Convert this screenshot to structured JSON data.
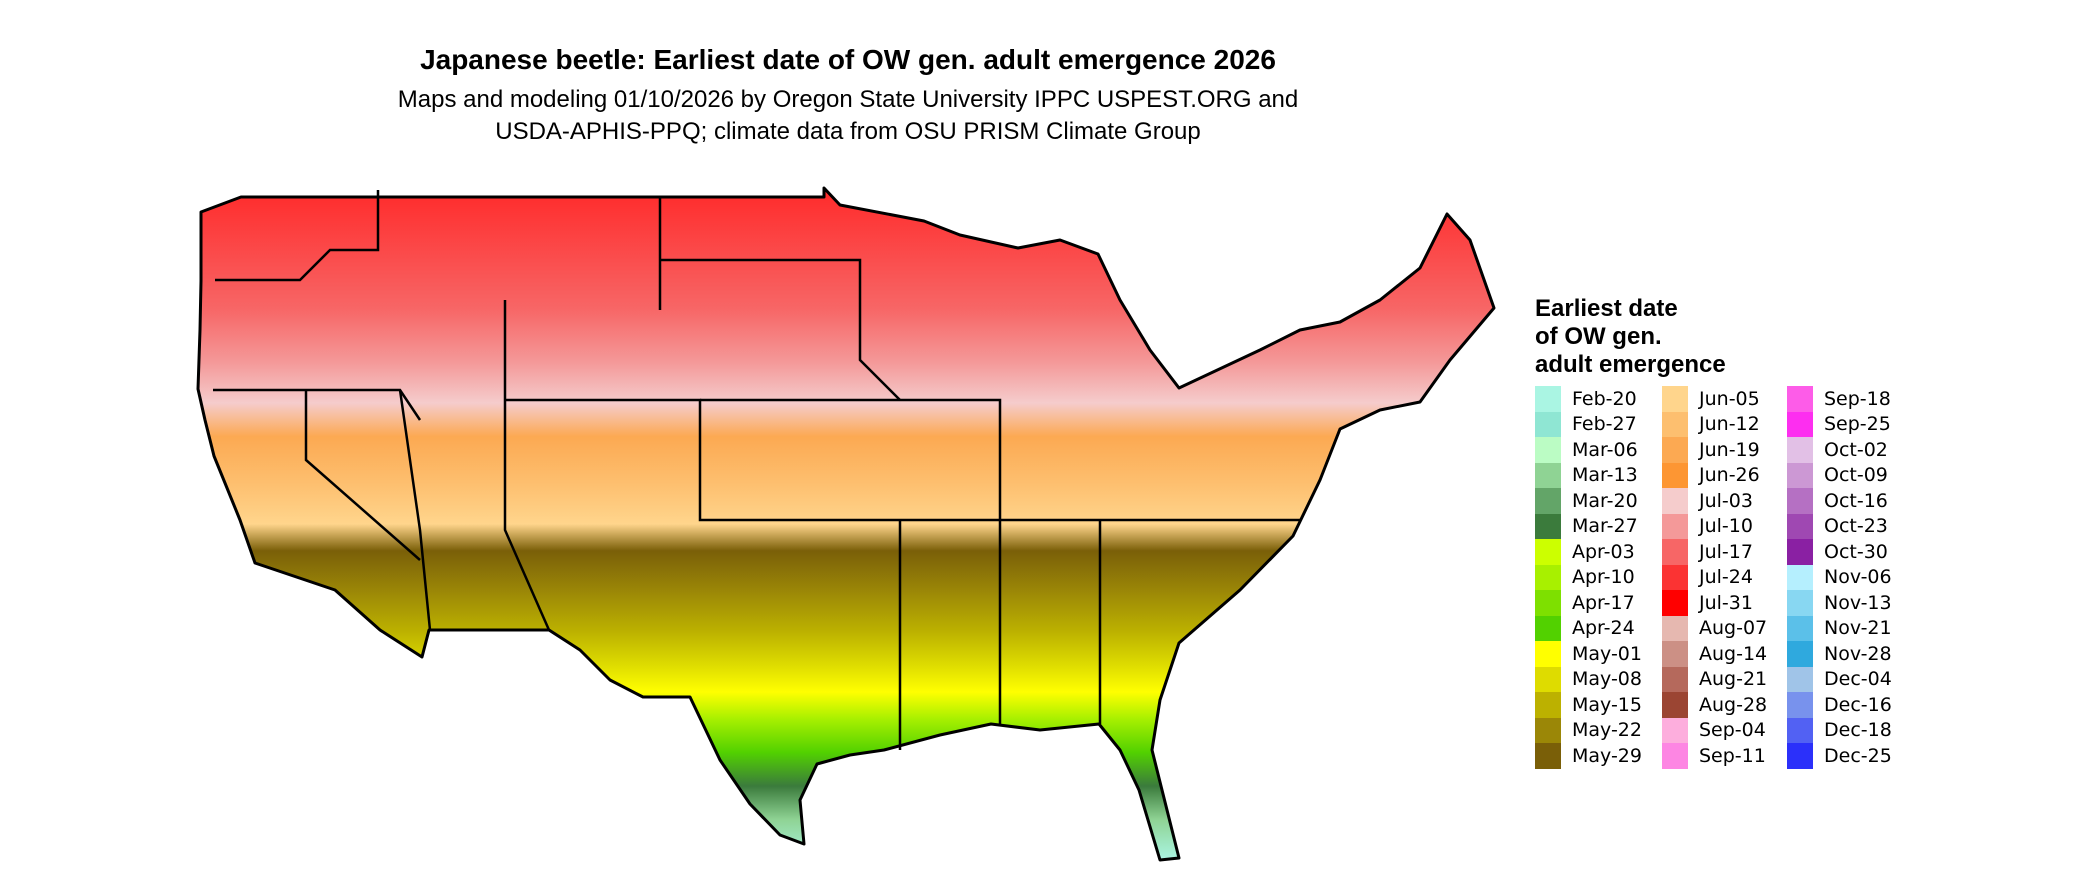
{
  "title": "Japanese beetle: Earliest date of OW gen. adult emergence 2026",
  "subtitle_lines": [
    "Maps and modeling 01/10/2026 by Oregon State University IPPC USPEST.ORG and",
    "USDA-APHIS-PPQ; climate data from OSU PRISM Climate Group"
  ],
  "legend": {
    "title_lines": [
      "Earliest date",
      "of OW gen.",
      "adult emergence"
    ],
    "columns": [
      [
        {
          "label": "Feb-20",
          "color": "#aaf5e3"
        },
        {
          "label": "Feb-27",
          "color": "#8fe6d3"
        },
        {
          "label": "Mar-06",
          "color": "#bbfcc4"
        },
        {
          "label": "Mar-13",
          "color": "#8fd394"
        },
        {
          "label": "Mar-20",
          "color": "#63a568"
        },
        {
          "label": "Mar-27",
          "color": "#3b7b3c"
        },
        {
          "label": "Apr-03",
          "color": "#ccff00"
        },
        {
          "label": "Apr-10",
          "color": "#a8f000"
        },
        {
          "label": "Apr-17",
          "color": "#7ee000"
        },
        {
          "label": "Apr-24",
          "color": "#52d100"
        },
        {
          "label": "May-01",
          "color": "#ffff00"
        },
        {
          "label": "May-08",
          "color": "#dedc00"
        },
        {
          "label": "May-15",
          "color": "#bcb100"
        },
        {
          "label": "May-22",
          "color": "#9b8707"
        },
        {
          "label": "May-29",
          "color": "#7a5f08"
        }
      ],
      [
        {
          "label": "Jun-05",
          "color": "#ffd58c"
        },
        {
          "label": "Jun-12",
          "color": "#fdbf6f"
        },
        {
          "label": "Jun-19",
          "color": "#fca952"
        },
        {
          "label": "Jun-26",
          "color": "#fd9633"
        },
        {
          "label": "Jul-03",
          "color": "#f5cccc"
        },
        {
          "label": "Jul-10",
          "color": "#f49999"
        },
        {
          "label": "Jul-17",
          "color": "#f76666"
        },
        {
          "label": "Jul-24",
          "color": "#fb3333"
        },
        {
          "label": "Jul-31",
          "color": "#ff0000"
        },
        {
          "label": "Aug-07",
          "color": "#e6b8b0"
        },
        {
          "label": "Aug-14",
          "color": "#cc9085"
        },
        {
          "label": "Aug-21",
          "color": "#b5695c"
        },
        {
          "label": "Aug-28",
          "color": "#9b4533"
        },
        {
          "label": "Sep-04",
          "color": "#fdaedd"
        },
        {
          "label": "Sep-11",
          "color": "#fd86e3"
        }
      ],
      [
        {
          "label": "Sep-18",
          "color": "#fd5ce8"
        },
        {
          "label": "Sep-25",
          "color": "#fd2ef0"
        },
        {
          "label": "Oct-02",
          "color": "#e2c0e6"
        },
        {
          "label": "Oct-09",
          "color": "#cc98d4"
        },
        {
          "label": "Oct-16",
          "color": "#b570c3"
        },
        {
          "label": "Oct-23",
          "color": "#9f48b2"
        },
        {
          "label": "Oct-30",
          "color": "#8a20a3"
        },
        {
          "label": "Nov-06",
          "color": "#b5effe"
        },
        {
          "label": "Nov-13",
          "color": "#88d7f2"
        },
        {
          "label": "Nov-21",
          "color": "#5bc0e9"
        },
        {
          "label": "Nov-28",
          "color": "#2fa9de"
        },
        {
          "label": "Dec-04",
          "color": "#a0c4e8"
        },
        {
          "label": "Dec-16",
          "color": "#7892ed"
        },
        {
          "label": "Dec-18",
          "color": "#5261f3"
        },
        {
          "label": "Dec-25",
          "color": "#2b30fa"
        }
      ]
    ]
  }
}
